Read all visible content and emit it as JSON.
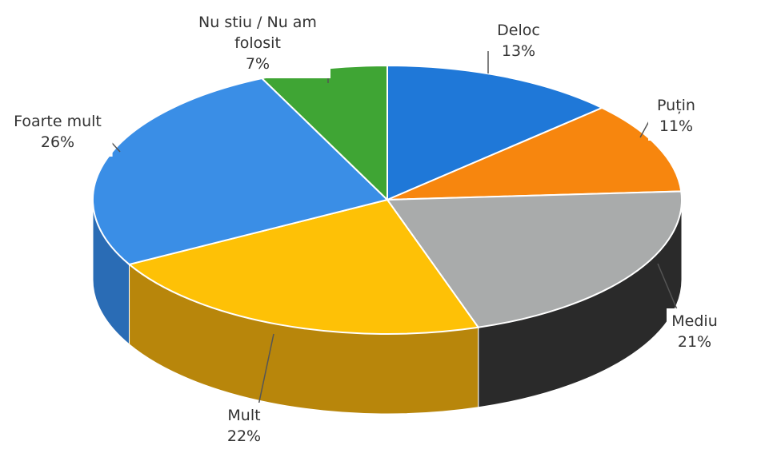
{
  "chart_data": {
    "type": "pie",
    "title": "",
    "slices": [
      {
        "label": "Deloc",
        "value": 13,
        "value_label": "13%",
        "color": "#1f78d8",
        "side_color": "#175aa3"
      },
      {
        "label": "Puțin",
        "value": 11,
        "value_label": "11%",
        "color": "#f7860e",
        "side_color": "#b8620a"
      },
      {
        "label": "Mediu",
        "value": 21,
        "value_label": "21%",
        "color": "#a9abab",
        "side_color": "#2a2a2a"
      },
      {
        "label": "Mult",
        "value": 22,
        "value_label": "22%",
        "color": "#fec106",
        "side_color": "#b8860b"
      },
      {
        "label": "Foarte mult",
        "value": 26,
        "value_label": "26%",
        "color": "#3a8ee6",
        "side_color": "#2a6cb5"
      },
      {
        "label": "Nu stiu / Nu am folosit",
        "label_lines": [
          "Nu stiu / Nu am",
          "folosit"
        ],
        "value": 7,
        "value_label": "7%",
        "color": "#3fa534",
        "side_color": "#2e7a26"
      }
    ],
    "legend": "none",
    "labels": "outside with leader lines"
  }
}
